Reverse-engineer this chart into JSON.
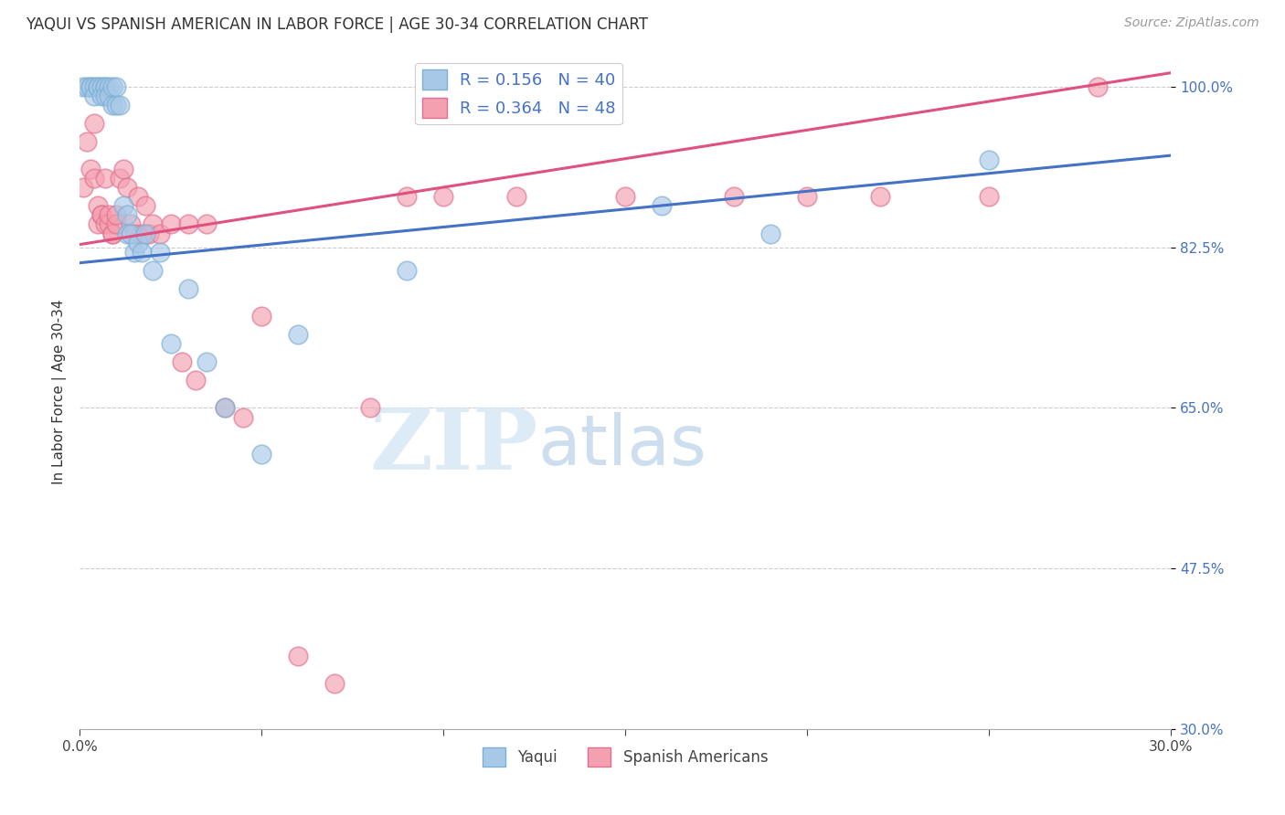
{
  "title": "YAQUI VS SPANISH AMERICAN IN LABOR FORCE | AGE 30-34 CORRELATION CHART",
  "source": "Source: ZipAtlas.com",
  "ylabel": "In Labor Force | Age 30-34",
  "xmin": 0.0,
  "xmax": 0.3,
  "ymin": 0.3,
  "ymax": 1.035,
  "yticks": [
    1.0,
    0.825,
    0.65,
    0.475,
    0.3
  ],
  "ytick_labels": [
    "100.0%",
    "82.5%",
    "65.0%",
    "47.5%",
    "30.0%"
  ],
  "xticks": [
    0.0,
    0.05,
    0.1,
    0.15,
    0.2,
    0.25,
    0.3
  ],
  "xtick_labels": [
    "0.0%",
    "",
    "",
    "",
    "",
    "",
    "30.0%"
  ],
  "blue_R": 0.156,
  "blue_N": 40,
  "pink_R": 0.364,
  "pink_N": 48,
  "blue_scatter_color": "#a8c8e8",
  "pink_scatter_color": "#f4a0b0",
  "blue_edge_color": "#7bafd4",
  "pink_edge_color": "#e07090",
  "blue_line_color": "#4472c4",
  "pink_line_color": "#e05080",
  "legend_label_blue": "Yaqui",
  "legend_label_pink": "Spanish Americans",
  "watermark_zip": "ZIP",
  "watermark_atlas": "atlas",
  "blue_x": [
    0.001,
    0.002,
    0.003,
    0.003,
    0.004,
    0.004,
    0.005,
    0.005,
    0.006,
    0.006,
    0.007,
    0.007,
    0.007,
    0.008,
    0.008,
    0.009,
    0.009,
    0.01,
    0.01,
    0.011,
    0.012,
    0.013,
    0.013,
    0.014,
    0.015,
    0.016,
    0.017,
    0.018,
    0.02,
    0.022,
    0.025,
    0.03,
    0.035,
    0.04,
    0.05,
    0.06,
    0.09,
    0.16,
    0.19,
    0.25
  ],
  "blue_y": [
    1.0,
    1.0,
    1.0,
    1.0,
    1.0,
    0.99,
    1.0,
    1.0,
    1.0,
    0.99,
    1.0,
    1.0,
    0.99,
    1.0,
    0.99,
    1.0,
    0.98,
    0.98,
    1.0,
    0.98,
    0.87,
    0.86,
    0.84,
    0.84,
    0.82,
    0.83,
    0.82,
    0.84,
    0.8,
    0.82,
    0.72,
    0.78,
    0.7,
    0.65,
    0.6,
    0.73,
    0.8,
    0.87,
    0.84,
    0.92
  ],
  "pink_x": [
    0.001,
    0.002,
    0.003,
    0.004,
    0.004,
    0.005,
    0.005,
    0.006,
    0.006,
    0.007,
    0.007,
    0.008,
    0.008,
    0.009,
    0.009,
    0.01,
    0.01,
    0.011,
    0.012,
    0.013,
    0.014,
    0.015,
    0.016,
    0.017,
    0.018,
    0.019,
    0.02,
    0.022,
    0.025,
    0.028,
    0.03,
    0.032,
    0.035,
    0.04,
    0.045,
    0.05,
    0.06,
    0.07,
    0.08,
    0.09,
    0.1,
    0.12,
    0.15,
    0.18,
    0.2,
    0.22,
    0.25,
    0.28
  ],
  "pink_y": [
    0.89,
    0.94,
    0.91,
    0.96,
    0.9,
    0.87,
    0.85,
    0.86,
    0.86,
    0.9,
    0.85,
    0.85,
    0.86,
    0.84,
    0.84,
    0.85,
    0.86,
    0.9,
    0.91,
    0.89,
    0.85,
    0.84,
    0.88,
    0.84,
    0.87,
    0.84,
    0.85,
    0.84,
    0.85,
    0.7,
    0.85,
    0.68,
    0.85,
    0.65,
    0.64,
    0.75,
    0.38,
    0.35,
    0.65,
    0.88,
    0.88,
    0.88,
    0.88,
    0.88,
    0.88,
    0.88,
    0.88,
    1.0
  ],
  "blue_line_x0": 0.0,
  "blue_line_y0": 0.808,
  "blue_line_x1": 0.3,
  "blue_line_y1": 0.925,
  "pink_line_x0": 0.0,
  "pink_line_y0": 0.828,
  "pink_line_x1": 0.3,
  "pink_line_y1": 1.015
}
